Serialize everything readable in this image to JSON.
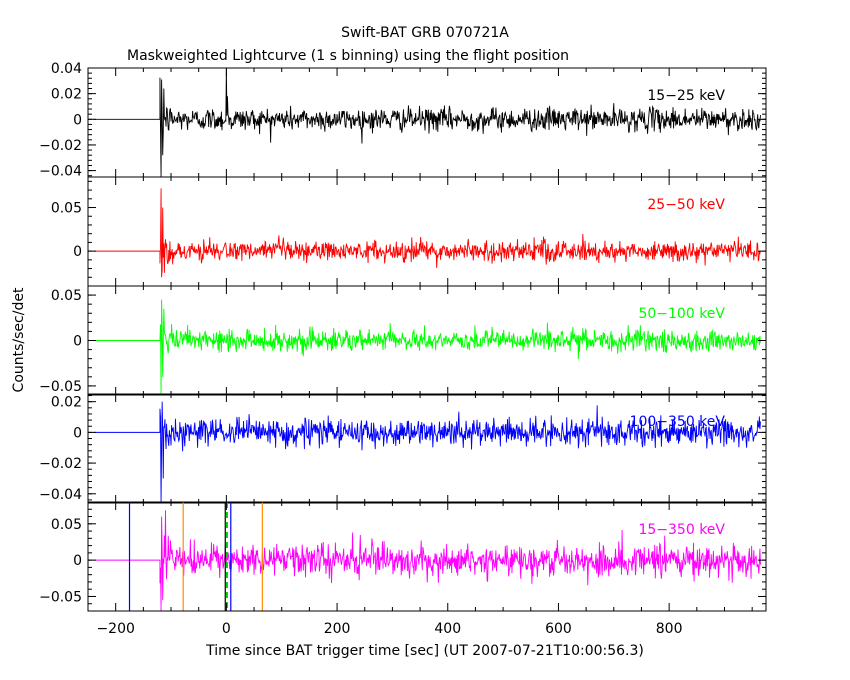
{
  "chart_data": {
    "type": "line",
    "title": "Swift-BAT GRB 070721A",
    "subtitle": "Maskweighted Lightcurve (1 s binning) using the flight position",
    "xlabel": "Time since BAT trigger time [sec] (UT 2007-07-21T10:00:56.3)",
    "ylabel": "Counts/sec/det",
    "xlim": [
      -250,
      975
    ],
    "x_ticks": [
      -200,
      0,
      200,
      400,
      600,
      800
    ],
    "x_tick_labels": [
      "−200",
      "0",
      "200",
      "400",
      "600",
      "800"
    ],
    "data_start": -240,
    "data_onset": -120,
    "data_end": 965,
    "panels": [
      {
        "name": "15-25 keV",
        "label": "15−25 keV",
        "color": "#000000",
        "ylim": [
          -0.045,
          0.04
        ],
        "y_ticks": [
          -0.04,
          -0.02,
          0,
          0.02,
          0.04
        ],
        "y_tick_labels": [
          "−0.04",
          "−0.02",
          "0",
          "0.02",
          "0.04"
        ],
        "noise_sigma": 0.0045,
        "spikes": [
          {
            "t": -118,
            "v": -0.045
          },
          {
            "t": -117,
            "v": 0.031
          },
          {
            "t": -115,
            "v": -0.028
          },
          {
            "t": -113,
            "v": 0.024
          },
          {
            "t": 0,
            "v": 0.04
          },
          {
            "t": 2,
            "v": 0.018
          }
        ]
      },
      {
        "name": "25-50 keV",
        "label": "25−50 keV",
        "color": "#ff0000",
        "ylim": [
          -0.04,
          0.085
        ],
        "y_ticks": [
          0,
          0.05
        ],
        "y_tick_labels": [
          "0",
          "0.05"
        ],
        "noise_sigma": 0.006,
        "spikes": [
          {
            "t": -118,
            "v": 0.072
          },
          {
            "t": -117,
            "v": -0.03
          },
          {
            "t": -115,
            "v": 0.05
          },
          {
            "t": -112,
            "v": -0.025
          }
        ]
      },
      {
        "name": "50-100 keV",
        "label": "50−100 keV",
        "color": "#00ff00",
        "ylim": [
          -0.06,
          0.06
        ],
        "y_ticks": [
          -0.05,
          0,
          0.05
        ],
        "y_tick_labels": [
          "−0.05",
          "0",
          "0.05"
        ],
        "noise_sigma": 0.006,
        "spikes": [
          {
            "t": -118,
            "v": -0.06
          },
          {
            "t": -117,
            "v": 0.045
          },
          {
            "t": -115,
            "v": -0.04
          },
          {
            "t": -113,
            "v": 0.035
          }
        ]
      },
      {
        "name": "100-350 keV",
        "label": "100−350 keV",
        "color": "#0000ff",
        "ylim": [
          -0.046,
          0.025
        ],
        "y_ticks": [
          -0.04,
          -0.02,
          0,
          0.02
        ],
        "y_tick_labels": [
          "−0.04",
          "−0.02",
          "0",
          "0.02"
        ],
        "noise_sigma": 0.0045,
        "spikes": [
          {
            "t": -118,
            "v": -0.046
          },
          {
            "t": -116,
            "v": 0.02
          },
          {
            "t": -114,
            "v": -0.03
          }
        ]
      },
      {
        "name": "15-350 keV",
        "label": "15−350 keV",
        "color": "#ff00ff",
        "ylim": [
          -0.07,
          0.08
        ],
        "y_ticks": [
          -0.05,
          0,
          0.05
        ],
        "y_tick_labels": [
          "−0.05",
          "0",
          "0.05"
        ],
        "noise_sigma": 0.011,
        "spikes": [
          {
            "t": -118,
            "v": -0.07
          },
          {
            "t": -117,
            "v": 0.06
          },
          {
            "t": -115,
            "v": -0.055
          }
        ],
        "markers": [
          {
            "t": -175,
            "color": "#0000ff",
            "style": "solid"
          },
          {
            "t": 8,
            "color": "#0000ff",
            "style": "solid"
          },
          {
            "t": -78,
            "color": "#ff8c00",
            "style": "solid"
          },
          {
            "t": 65,
            "color": "#ff8c00",
            "style": "solid"
          },
          {
            "t": -2,
            "color": "#000000",
            "style": "solid"
          },
          {
            "t": 1,
            "color": "#00cc00",
            "style": "dashed"
          }
        ]
      }
    ]
  }
}
